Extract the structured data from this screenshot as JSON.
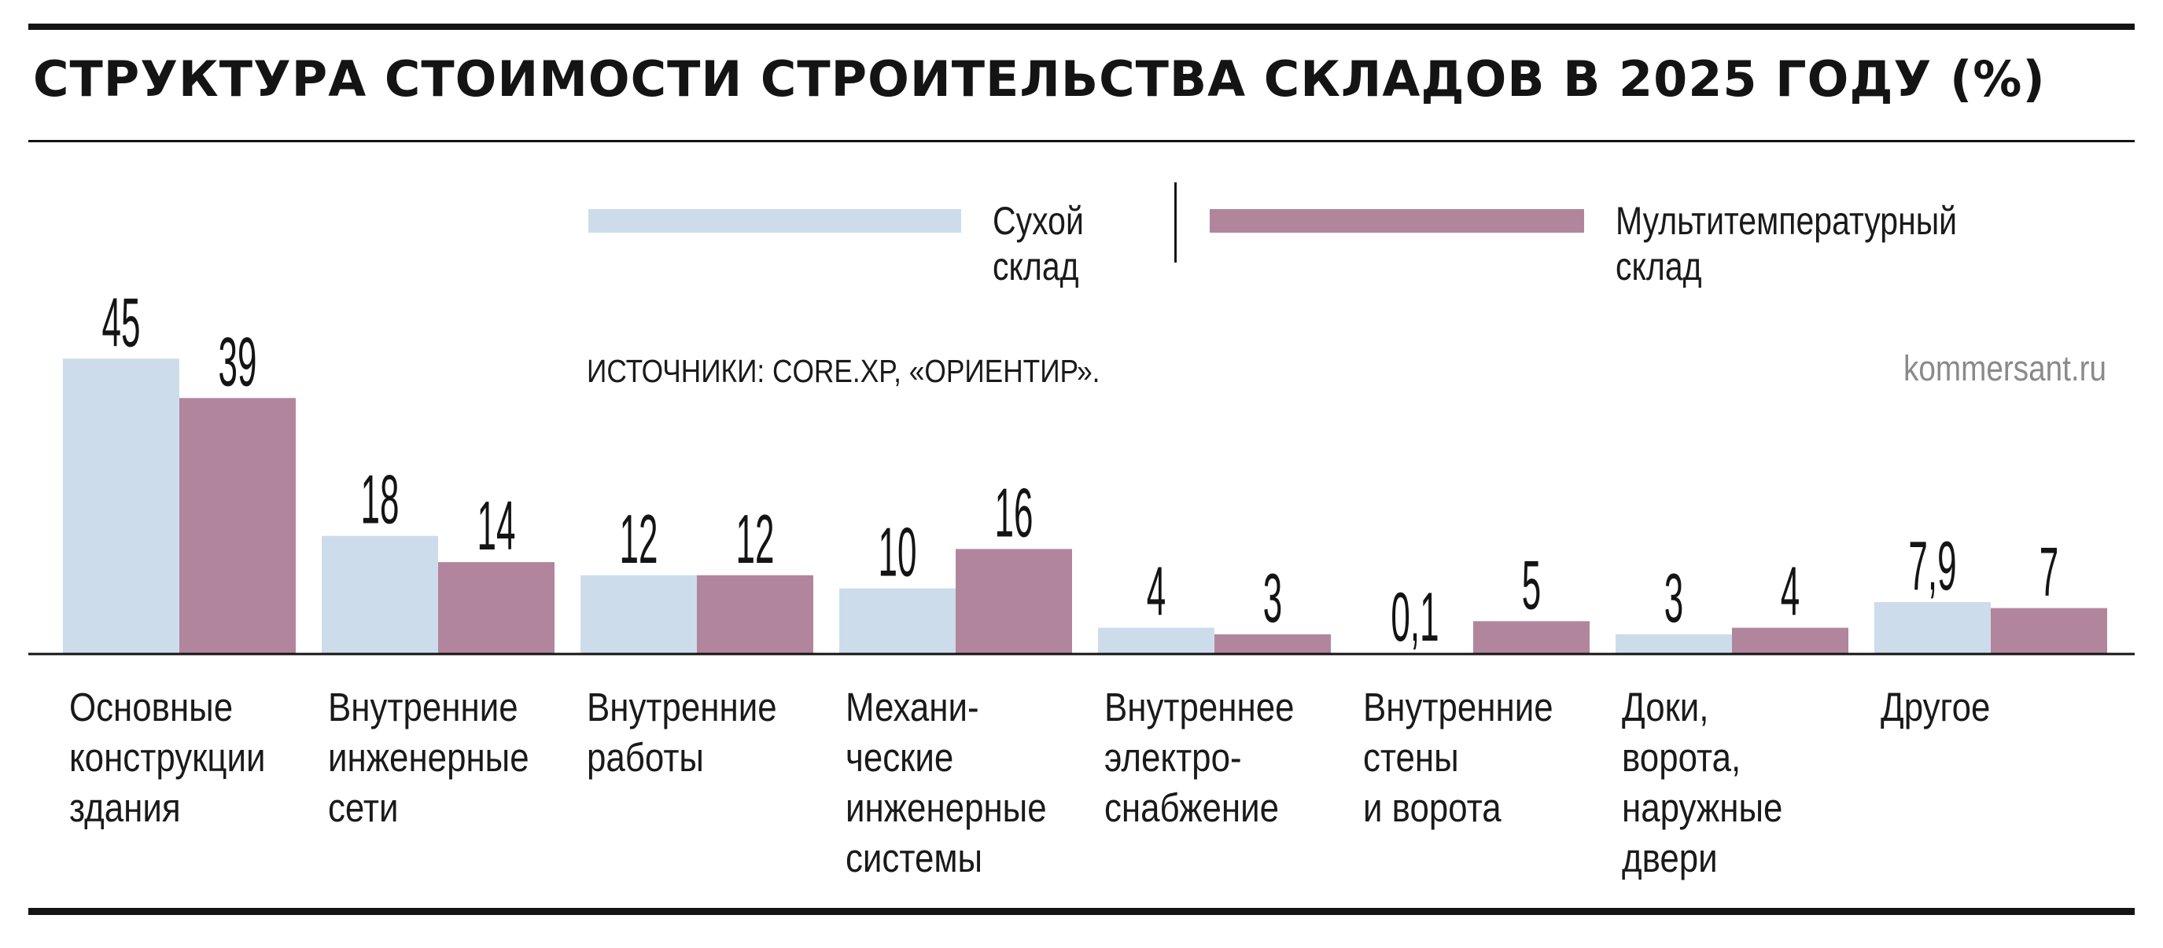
{
  "title": "СТРУКТУРА СТОИМОСТИ СТРОИТЕЛЬСТВА СКЛАДОВ В 2025 ГОДУ (%)",
  "source": "ИСТОЧНИКИ: CORE.XP, «ОРИЕНТИР».",
  "site": "kommersant.ru",
  "colors": {
    "dry": "#cddcea",
    "multi": "#b1869d",
    "text": "#1a1a1a",
    "rule": "#141414"
  },
  "chart_data": {
    "type": "bar",
    "title": "СТРУКТУРА СТОИМОСТИ СТРОИТЕЛЬСТВА СКЛАДОВ В 2025 ГОДУ (%)",
    "xlabel": "",
    "ylabel": "",
    "ylim": [
      0,
      45
    ],
    "grid": false,
    "legend": "top",
    "categories": [
      [
        "Основные",
        "конструкции",
        "здания"
      ],
      [
        "Внутренние",
        "инженерные",
        "сети"
      ],
      [
        "Внутренние",
        "работы"
      ],
      [
        "Механи-",
        "ческие",
        "инженерные",
        "системы"
      ],
      [
        "Внутреннее",
        "электро-",
        "снабжение"
      ],
      [
        "Внутренние",
        "стены",
        "и ворота"
      ],
      [
        "Доки,",
        "ворота,",
        "наружные",
        "двери"
      ],
      [
        "Другое"
      ]
    ],
    "series": [
      {
        "name": [
          "Сухой",
          "склад"
        ],
        "color": "#cddcea",
        "values": [
          45,
          18,
          12,
          10,
          4,
          0.1,
          3,
          7.9
        ],
        "labels": [
          "45",
          "18",
          "12",
          "10",
          "4",
          "0,1",
          "3",
          "7,9"
        ]
      },
      {
        "name": [
          "Мультитемпературный",
          "склад"
        ],
        "color": "#b1869d",
        "values": [
          39,
          14,
          12,
          16,
          3,
          5,
          4,
          7
        ],
        "labels": [
          "39",
          "14",
          "12",
          "16",
          "3",
          "5",
          "4",
          "7"
        ]
      }
    ]
  }
}
